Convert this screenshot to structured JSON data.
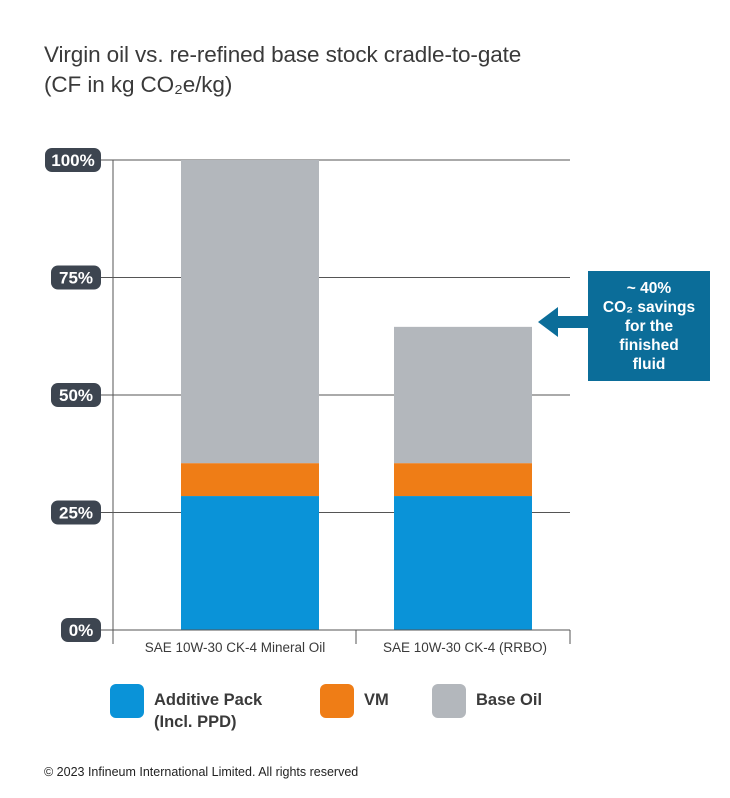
{
  "title_line1": "Virgin oil vs. re-refined base stock cradle-to-gate",
  "title_line2": "(CF in kg CO₂e/kg)",
  "callout": {
    "line1": "~ 40%",
    "line2": "CO₂ savings",
    "line3": "for the",
    "line4": "finished",
    "line5": "fluid"
  },
  "footer": "© 2023 Infineum International Limited. All rights reserved",
  "colors": {
    "additive_pack": "#0a93d8",
    "vm": "#ef7d16",
    "base_oil": "#b3b7bc",
    "axis_label_bg": "#3d4550",
    "grid": "#555555",
    "callout": "#0b6d99"
  },
  "chart_data": {
    "type": "bar",
    "stacked": true,
    "title": "Virgin oil vs. re-refined base stock cradle-to-gate (CF in kg CO₂e/kg)",
    "categories": [
      "SAE 10W-30 CK-4 Mineral Oil",
      "SAE 10W-30 CK-4 (RRBO)"
    ],
    "series": [
      {
        "name": "Additive Pack (Incl. PPD)",
        "legend_line1": "Additive Pack",
        "legend_line2": "(Incl. PPD)",
        "color": "#0a93d8",
        "values": [
          28.5,
          28.5
        ]
      },
      {
        "name": "VM",
        "legend_line1": "VM",
        "legend_line2": "",
        "color": "#ef7d16",
        "values": [
          7,
          7
        ]
      },
      {
        "name": "Base Oil",
        "legend_line1": "Base Oil",
        "legend_line2": "",
        "color": "#b3b7bc",
        "values": [
          64.5,
          29
        ]
      }
    ],
    "yticks": [
      0,
      25,
      50,
      75,
      100
    ],
    "ytick_labels": [
      "0%",
      "25%",
      "50%",
      "75%",
      "100%"
    ],
    "ylim": [
      0,
      100
    ],
    "grid": true,
    "legend_position": "bottom"
  }
}
